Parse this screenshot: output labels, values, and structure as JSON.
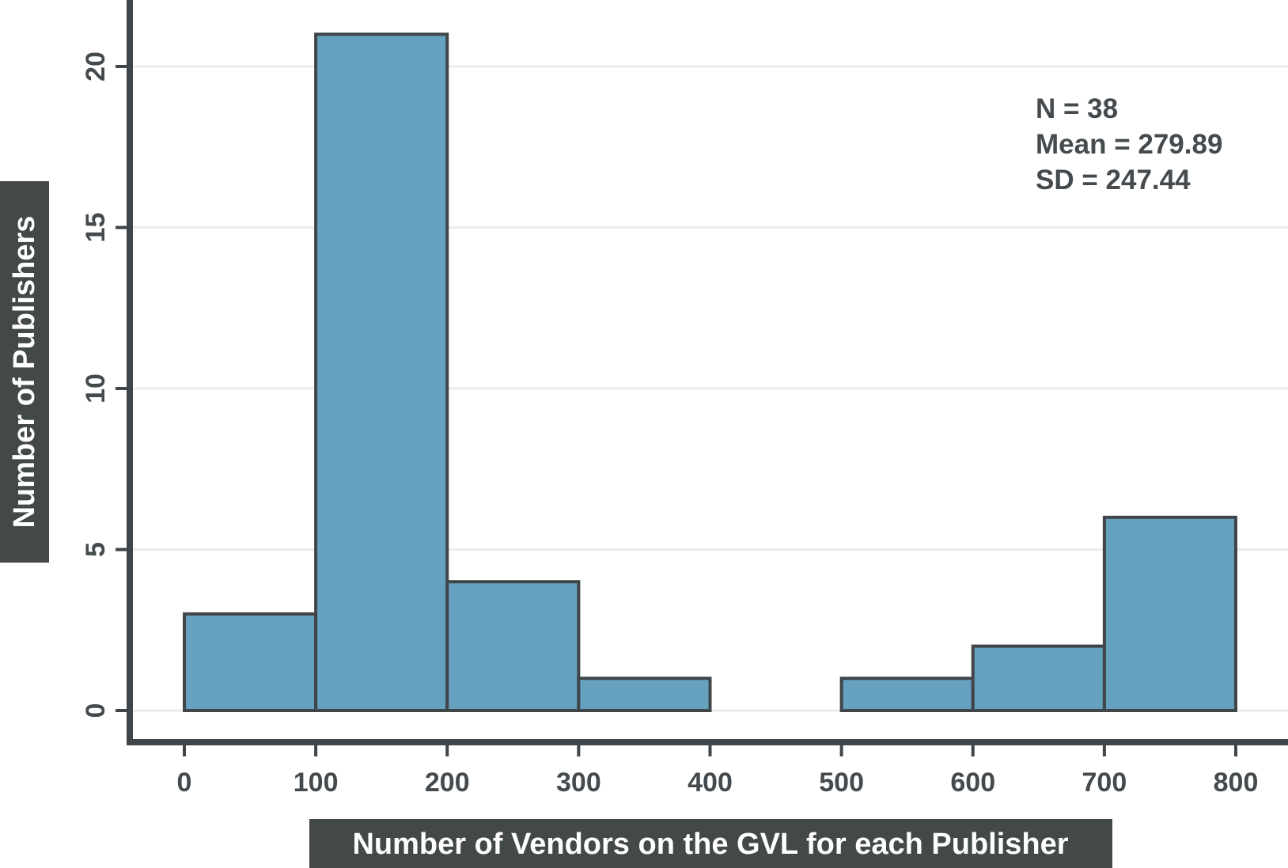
{
  "chart_data": {
    "type": "bar",
    "subtype": "histogram",
    "xlabel": "Number of Vendors on the GVL for each Publisher",
    "ylabel": "Number of Publishers",
    "bins": [
      {
        "start": 0,
        "end": 100,
        "count": 3
      },
      {
        "start": 100,
        "end": 200,
        "count": 21
      },
      {
        "start": 200,
        "end": 300,
        "count": 4
      },
      {
        "start": 300,
        "end": 400,
        "count": 1
      },
      {
        "start": 400,
        "end": 500,
        "count": 0
      },
      {
        "start": 500,
        "end": 600,
        "count": 1
      },
      {
        "start": 600,
        "end": 700,
        "count": 2
      },
      {
        "start": 700,
        "end": 800,
        "count": 6
      }
    ],
    "xticks": [
      "0",
      "100",
      "200",
      "300",
      "400",
      "500",
      "600",
      "700",
      "800"
    ],
    "yticks": [
      "0",
      "5",
      "10",
      "15",
      "20"
    ],
    "xlim": [
      0,
      800
    ],
    "ylim": [
      0,
      22
    ],
    "grid": "horizontal",
    "annotations": [
      "N = 38",
      "Mean = 279.89",
      "SD = 247.44"
    ],
    "colors": {
      "bar_fill": "#66a2c0",
      "bar_edge": "#3f4548",
      "axis": "#3f4548",
      "label_box": "#434849",
      "text": "#444a4d",
      "grid": "#ebebeb"
    }
  }
}
